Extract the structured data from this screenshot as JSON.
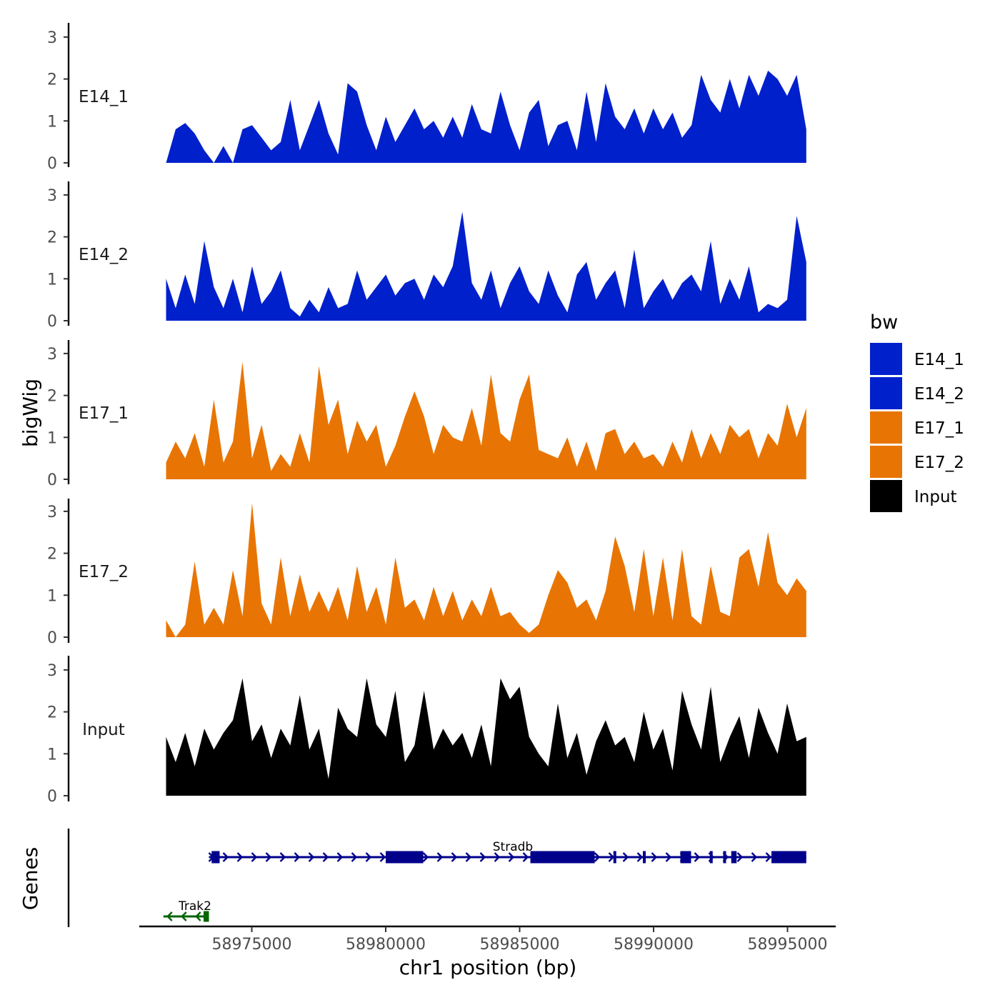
{
  "chart_data": {
    "type": "area",
    "ylabel": "bigWig",
    "xlabel": "chr1 position (bp)",
    "xlim": [
      58970800,
      58996800
    ],
    "ylim": [
      0,
      3.2
    ],
    "y_ticks": [
      "0",
      "1",
      "2",
      "3"
    ],
    "x_ticks": [
      {
        "value": 58975000,
        "label": "58975000"
      },
      {
        "value": 58980000,
        "label": "58980000"
      },
      {
        "value": 58985000,
        "label": "58985000"
      },
      {
        "value": 58990000,
        "label": "58990000"
      },
      {
        "value": 58995000,
        "label": "58995000"
      }
    ],
    "legend": {
      "title": "bw",
      "position": "right",
      "entries": [
        {
          "name": "E14_1",
          "color": "#0020CC"
        },
        {
          "name": "E14_2",
          "color": "#0020CC"
        },
        {
          "name": "E17_1",
          "color": "#E87503"
        },
        {
          "name": "E17_2",
          "color": "#E87503"
        },
        {
          "name": "Input",
          "color": "#000000"
        }
      ]
    },
    "series": [
      {
        "name": "E14_1",
        "color": "#0020CC",
        "x_start": 58971800,
        "x_end": 58995700,
        "values": [
          0,
          0.8,
          0.95,
          0.7,
          0.3,
          0,
          0.4,
          0,
          0.8,
          0.9,
          0.6,
          0.3,
          0.5,
          1.5,
          0.3,
          0.9,
          1.5,
          0.7,
          0.2,
          1.9,
          1.7,
          0.9,
          0.3,
          1.1,
          0.5,
          0.9,
          1.3,
          0.8,
          1.0,
          0.6,
          1.1,
          0.6,
          1.4,
          0.8,
          0.7,
          1.7,
          0.9,
          0.3,
          1.2,
          1.5,
          0.4,
          0.9,
          1.0,
          0.3,
          1.7,
          0.5,
          1.9,
          1.1,
          0.8,
          1.3,
          0.7,
          1.3,
          0.8,
          1.2,
          0.6,
          0.9,
          2.1,
          1.5,
          1.2,
          2.0,
          1.3,
          2.1,
          1.6,
          2.2,
          2.0,
          1.6,
          2.1,
          0.8
        ]
      },
      {
        "name": "E14_2",
        "color": "#0020CC",
        "x_start": 58971800,
        "x_end": 58995700,
        "values": [
          1.0,
          0.3,
          1.1,
          0.4,
          1.9,
          0.8,
          0.3,
          1.0,
          0.2,
          1.3,
          0.4,
          0.7,
          1.2,
          0.3,
          0.1,
          0.5,
          0.2,
          0.8,
          0.3,
          0.4,
          1.2,
          0.5,
          0.8,
          1.1,
          0.6,
          0.9,
          1.0,
          0.5,
          1.1,
          0.8,
          1.3,
          2.6,
          0.9,
          0.5,
          1.2,
          0.3,
          0.9,
          1.3,
          0.7,
          0.4,
          1.2,
          0.6,
          0.2,
          1.1,
          1.4,
          0.5,
          0.9,
          1.2,
          0.3,
          1.7,
          0.3,
          0.7,
          1.0,
          0.5,
          0.9,
          1.1,
          0.7,
          1.9,
          0.4,
          1.0,
          0.5,
          1.3,
          0.2,
          0.4,
          0.3,
          0.5,
          2.5,
          1.4
        ]
      },
      {
        "name": "E17_1",
        "color": "#E87503",
        "x_start": 58971800,
        "x_end": 58995700,
        "values": [
          0.4,
          0.9,
          0.5,
          1.1,
          0.3,
          1.9,
          0.4,
          0.9,
          2.8,
          0.5,
          1.3,
          0.2,
          0.6,
          0.3,
          1.1,
          0.4,
          2.7,
          1.3,
          1.9,
          0.6,
          1.4,
          0.9,
          1.3,
          0.3,
          0.8,
          1.5,
          2.1,
          1.5,
          0.6,
          1.3,
          1.0,
          0.9,
          1.7,
          0.8,
          2.5,
          1.1,
          0.9,
          1.9,
          2.5,
          0.7,
          0.6,
          0.5,
          1.0,
          0.3,
          0.9,
          0.2,
          1.1,
          1.2,
          0.6,
          0.9,
          0.5,
          0.6,
          0.3,
          0.9,
          0.4,
          1.2,
          0.5,
          1.1,
          0.6,
          1.3,
          1.0,
          1.2,
          0.5,
          1.1,
          0.8,
          1.8,
          1.0,
          1.7
        ]
      },
      {
        "name": "E17_2",
        "color": "#E87503",
        "x_start": 58971800,
        "x_end": 58995700,
        "values": [
          0.4,
          0.0,
          0.3,
          1.8,
          0.3,
          0.7,
          0.3,
          1.6,
          0.5,
          3.2,
          0.8,
          0.3,
          1.9,
          0.5,
          1.5,
          0.6,
          1.1,
          0.6,
          1.2,
          0.4,
          1.7,
          0.6,
          1.2,
          0.3,
          1.9,
          0.7,
          0.9,
          0.4,
          1.2,
          0.5,
          1.1,
          0.4,
          0.9,
          0.5,
          1.2,
          0.5,
          0.6,
          0.3,
          0.1,
          0.3,
          1.0,
          1.6,
          1.3,
          0.7,
          0.9,
          0.4,
          1.1,
          2.4,
          1.7,
          0.6,
          2.1,
          0.5,
          1.9,
          0.4,
          2.1,
          0.5,
          0.3,
          1.7,
          0.6,
          0.5,
          1.9,
          2.1,
          1.2,
          2.5,
          1.3,
          1.0,
          1.4,
          1.1
        ]
      },
      {
        "name": "Input",
        "color": "#000000",
        "x_start": 58971800,
        "x_end": 58995700,
        "values": [
          1.4,
          0.8,
          1.5,
          0.7,
          1.6,
          1.1,
          1.5,
          1.8,
          2.8,
          1.3,
          1.7,
          0.9,
          1.6,
          1.2,
          2.4,
          1.1,
          1.6,
          0.4,
          2.1,
          1.6,
          1.4,
          2.8,
          1.7,
          1.4,
          2.5,
          0.8,
          1.2,
          2.5,
          1.1,
          1.6,
          1.2,
          1.5,
          0.9,
          1.7,
          0.7,
          2.8,
          2.3,
          2.6,
          1.4,
          1.0,
          0.7,
          2.2,
          0.9,
          1.5,
          0.5,
          1.3,
          1.8,
          1.2,
          1.4,
          0.8,
          2.0,
          1.1,
          1.6,
          0.6,
          2.5,
          1.7,
          1.1,
          2.6,
          0.8,
          1.4,
          1.9,
          0.9,
          2.1,
          1.5,
          1.0,
          2.2,
          1.3,
          1.4
        ]
      }
    ],
    "genes": [
      {
        "name": "Stradb",
        "strand": "+",
        "color": "#00008B",
        "start": 58973400,
        "end": 58995700,
        "exons": [
          [
            58973500,
            58973800
          ],
          [
            58980000,
            58981400
          ],
          [
            58985400,
            58987800
          ],
          [
            58988500,
            58988600
          ],
          [
            58989600,
            58989700
          ],
          [
            58991000,
            58991400
          ],
          [
            58992100,
            58992200
          ],
          [
            58992600,
            58992700
          ],
          [
            58992900,
            58993100
          ],
          [
            58994400,
            58995700
          ]
        ]
      },
      {
        "name": "Trak2",
        "strand": "-",
        "color": "#006400",
        "start": 58971700,
        "end": 58973400,
        "exons": [
          [
            58973200,
            58973400
          ]
        ]
      }
    ]
  },
  "genes_label": "Genes"
}
